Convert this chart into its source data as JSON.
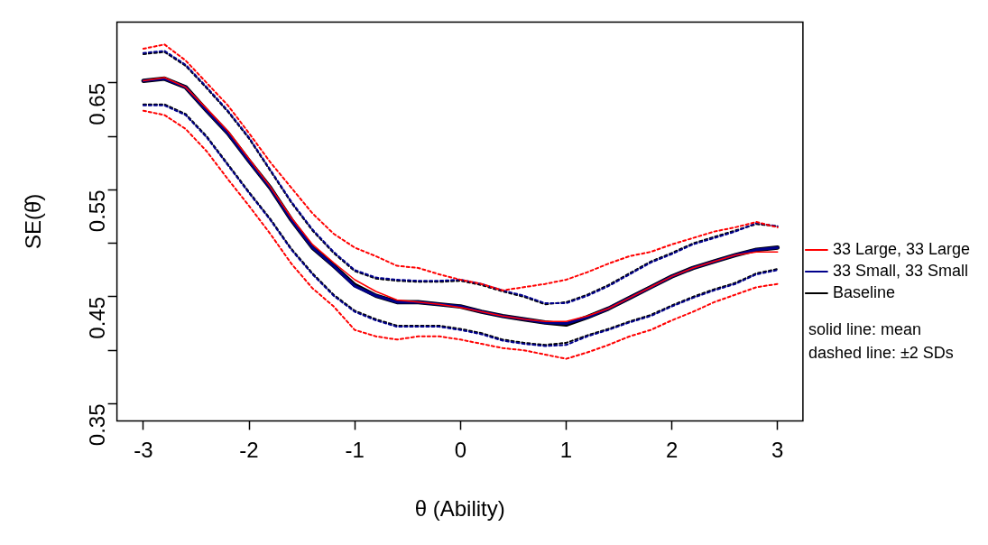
{
  "chart_data": {
    "type": "line",
    "xlabel": "θ (Ability)",
    "ylabel": "SE(θ̂)",
    "x": [
      -3,
      -2.8,
      -2.6,
      -2.4,
      -2.2,
      -2,
      -1.8,
      -1.6,
      -1.4,
      -1.2,
      -1,
      -0.8,
      -0.6,
      -0.4,
      -0.2,
      0,
      0.2,
      0.4,
      0.6,
      0.8,
      1,
      1.2,
      1.4,
      1.6,
      1.8,
      2,
      2.2,
      2.4,
      2.6,
      2.8,
      3
    ],
    "xlim": [
      -3.25,
      3.24
    ],
    "xticks": [
      -3,
      -2,
      -1,
      0,
      1,
      2,
      3
    ],
    "ylim": [
      0.334,
      0.707
    ],
    "yticks": [
      0.35,
      {
        "value": 0.4,
        "label": null
      },
      0.45,
      {
        "value": 0.5,
        "label": null
      },
      0.55,
      {
        "value": 0.6,
        "label": null
      },
      0.65
    ],
    "grid": false,
    "legend": "right",
    "marker": "none",
    "annotations": [
      "solid line: mean",
      "dashed line: ±2 SDs"
    ],
    "series": [
      {
        "name": "33 Large, 33 Large",
        "color": "#ff0000",
        "line_style": "solid",
        "values": [
          0.652,
          0.655,
          0.646,
          0.626,
          0.605,
          0.579,
          0.553,
          0.524,
          0.499,
          0.482,
          0.466,
          0.455,
          0.447,
          0.445,
          0.443,
          0.44,
          0.436,
          0.432,
          0.429,
          0.427,
          0.427,
          0.432,
          0.439,
          0.449,
          0.459,
          0.469,
          0.477,
          0.483,
          0.489,
          0.492,
          0.492
        ]
      },
      {
        "name": "33 Small, 33 Small",
        "color": "#00008b",
        "line_style": "solid",
        "values": [
          0.652,
          0.654,
          0.646,
          0.624,
          0.603,
          0.577,
          0.552,
          0.522,
          0.496,
          0.479,
          0.46,
          0.451,
          0.445,
          0.445,
          0.443,
          0.441,
          0.436,
          0.432,
          0.429,
          0.426,
          0.425,
          0.431,
          0.439,
          0.449,
          0.459,
          0.469,
          0.477,
          0.483,
          0.489,
          0.494,
          0.496
        ]
      },
      {
        "name": "Baseline",
        "color": "#000000",
        "line_style": "solid",
        "values": [
          0.652,
          0.654,
          0.646,
          0.624,
          0.603,
          0.577,
          0.552,
          0.522,
          0.496,
          0.479,
          0.461,
          0.451,
          0.445,
          0.445,
          0.443,
          0.441,
          0.436,
          0.432,
          0.429,
          0.426,
          0.424,
          0.431,
          0.439,
          0.449,
          0.459,
          0.469,
          0.477,
          0.483,
          0.489,
          0.494,
          0.496
        ]
      },
      {
        "color": "#ff0000",
        "line_style": "dashed",
        "values": [
          0.682,
          0.686,
          0.671,
          0.65,
          0.629,
          0.603,
          0.576,
          0.552,
          0.528,
          0.509,
          0.496,
          0.488,
          0.479,
          0.477,
          0.471,
          0.466,
          0.462,
          0.456,
          0.459,
          0.462,
          0.466,
          0.473,
          0.481,
          0.488,
          0.492,
          0.499,
          0.505,
          0.511,
          0.515,
          0.52,
          0.515
        ]
      },
      {
        "color": "#ff0000",
        "line_style": "dashed",
        "values": [
          0.624,
          0.62,
          0.607,
          0.586,
          0.56,
          0.535,
          0.509,
          0.481,
          0.458,
          0.441,
          0.419,
          0.413,
          0.41,
          0.413,
          0.413,
          0.41,
          0.406,
          0.402,
          0.4,
          0.396,
          0.392,
          0.398,
          0.405,
          0.413,
          0.419,
          0.428,
          0.436,
          0.445,
          0.452,
          0.459,
          0.462
        ]
      },
      {
        "color": "#00008b",
        "line_style": "dashed",
        "values": [
          0.678,
          0.68,
          0.667,
          0.646,
          0.624,
          0.599,
          0.569,
          0.539,
          0.513,
          0.492,
          0.475,
          0.468,
          0.466,
          0.465,
          0.465,
          0.466,
          0.462,
          0.456,
          0.451,
          0.444,
          0.444,
          0.451,
          0.46,
          0.471,
          0.482,
          0.49,
          0.499,
          0.505,
          0.511,
          0.519,
          0.516
        ]
      },
      {
        "color": "#00008b",
        "line_style": "dashed",
        "values": [
          0.629,
          0.629,
          0.62,
          0.599,
          0.573,
          0.547,
          0.522,
          0.494,
          0.471,
          0.451,
          0.436,
          0.428,
          0.422,
          0.422,
          0.422,
          0.419,
          0.415,
          0.409,
          0.406,
          0.404,
          0.405,
          0.413,
          0.419,
          0.426,
          0.432,
          0.441,
          0.449,
          0.456,
          0.462,
          0.471,
          0.475
        ]
      },
      {
        "color": "#000000",
        "line_style": "dashed",
        "values": [
          0.677,
          0.679,
          0.666,
          0.645,
          0.623,
          0.598,
          0.568,
          0.538,
          0.512,
          0.491,
          0.474,
          0.467,
          0.465,
          0.464,
          0.464,
          0.465,
          0.461,
          0.455,
          0.45,
          0.443,
          0.445,
          0.452,
          0.461,
          0.472,
          0.483,
          0.491,
          0.5,
          0.506,
          0.512,
          0.518,
          0.516
        ]
      },
      {
        "color": "#000000",
        "line_style": "dashed",
        "values": [
          0.63,
          0.63,
          0.621,
          0.6,
          0.574,
          0.548,
          0.523,
          0.495,
          0.472,
          0.452,
          0.437,
          0.429,
          0.423,
          0.423,
          0.423,
          0.42,
          0.416,
          0.41,
          0.407,
          0.405,
          0.407,
          0.414,
          0.42,
          0.427,
          0.433,
          0.442,
          0.45,
          0.457,
          0.463,
          0.472,
          0.476
        ]
      }
    ]
  }
}
